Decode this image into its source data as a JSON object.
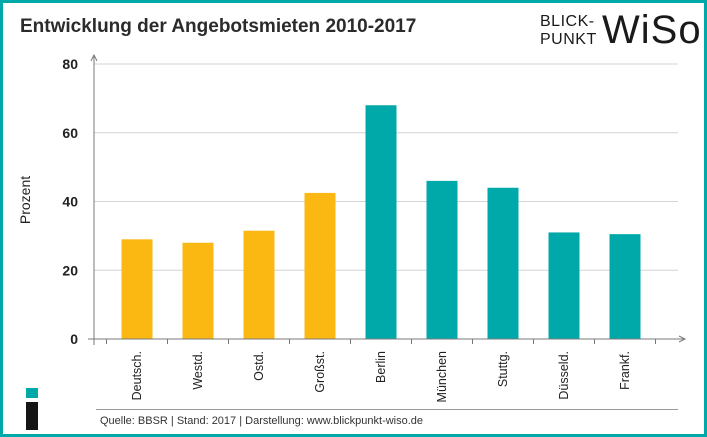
{
  "title": "Entwicklung der Angebotsmieten 2010-2017",
  "logo": {
    "line1": "BLICK-",
    "line2": "PUNKT",
    "brand": "WiSo"
  },
  "source": "Quelle: BBSR  |  Stand: 2017  |  Darstellung: www.blickpunkt-wiso.de",
  "colors": {
    "frame": "#00a9a9",
    "orange": "#fbb813",
    "teal": "#00a9a9"
  },
  "chart_data": {
    "type": "bar",
    "title": "Entwicklung der Angebotsmieten 2010-2017",
    "xlabel": "",
    "ylabel": "Prozent",
    "ylim": [
      0,
      80
    ],
    "yticks": [
      0,
      20,
      40,
      60,
      80
    ],
    "grid": true,
    "categories": [
      "Deutsch.",
      "Westd.",
      "Ostd.",
      "Großst.",
      "Berlin",
      "München",
      "Stuttg.",
      "Düsseld.",
      "Frankf."
    ],
    "values": [
      29,
      28,
      31.5,
      42.5,
      68,
      46,
      44,
      31,
      30.5
    ],
    "bar_colors": [
      "#fbb813",
      "#fbb813",
      "#fbb813",
      "#fbb813",
      "#00a9a9",
      "#00a9a9",
      "#00a9a9",
      "#00a9a9",
      "#00a9a9"
    ]
  }
}
